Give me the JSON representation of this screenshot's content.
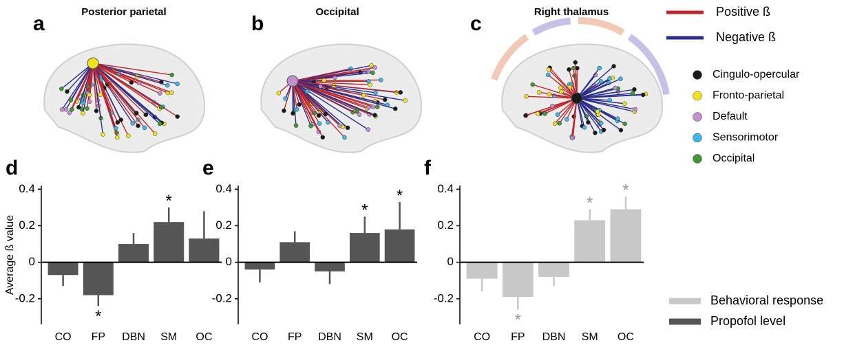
{
  "panels": [
    {
      "letter": "a",
      "title": "Posterior parietal"
    },
    {
      "letter": "b",
      "title": "Occipital"
    },
    {
      "letter": "c",
      "title": "Right thalamus"
    }
  ],
  "edge_legend": [
    {
      "name": "Positive ß",
      "color": "#c0282d"
    },
    {
      "name": "Negative ß",
      "color": "#2b2f8a"
    }
  ],
  "network_legend": [
    {
      "name": "Cingulo-opercular",
      "color": "#1a1a1a"
    },
    {
      "name": "Fronto-parietal",
      "color": "#f2e21b"
    },
    {
      "name": "Default",
      "color": "#c08fd0"
    },
    {
      "name": "Sensorimotor",
      "color": "#3fb6e8"
    },
    {
      "name": "Occipital",
      "color": "#3d9a32"
    }
  ],
  "bar_legend": [
    {
      "name": "Behavioral response",
      "color": "#c8c8c8"
    },
    {
      "name": "Propofol level",
      "color": "#555555"
    }
  ],
  "chart_data": [
    {
      "type": "bar",
      "letter": "d",
      "y_label": "Average ß value",
      "categories": [
        "CO",
        "FP",
        "DBN",
        "SM",
        "OC"
      ],
      "values": [
        -0.07,
        -0.18,
        0.1,
        0.22,
        0.13
      ],
      "errors": [
        0.06,
        0.06,
        0.06,
        0.08,
        0.15
      ],
      "significance": [
        null,
        "*",
        null,
        "*",
        null
      ],
      "color": "#555555",
      "star_color": "#000000",
      "ylim": [
        -0.34,
        0.42
      ],
      "yticks": [
        -0.2,
        0,
        0.2,
        0.4
      ]
    },
    {
      "type": "bar",
      "letter": "e",
      "categories": [
        "CO",
        "FP",
        "DBN",
        "SM",
        "OC"
      ],
      "values": [
        -0.04,
        0.11,
        -0.05,
        0.16,
        0.18
      ],
      "errors": [
        0.07,
        0.06,
        0.07,
        0.09,
        0.15
      ],
      "significance": [
        null,
        null,
        null,
        "*",
        "*"
      ],
      "color": "#555555",
      "star_color": "#000000",
      "ylim": [
        -0.34,
        0.42
      ],
      "yticks": [
        -0.2,
        0,
        0.2,
        0.4
      ]
    },
    {
      "type": "bar",
      "letter": "f",
      "categories": [
        "CO",
        "FP",
        "DBN",
        "SM",
        "OC"
      ],
      "values": [
        -0.09,
        -0.19,
        -0.08,
        0.23,
        0.29
      ],
      "errors": [
        0.07,
        0.07,
        0.05,
        0.06,
        0.07
      ],
      "significance": [
        null,
        "*",
        null,
        "*",
        "*"
      ],
      "color": "#c8c8c8",
      "star_color": "#999999",
      "ylim": [
        -0.34,
        0.42
      ],
      "yticks": [
        -0.2,
        0,
        0.2,
        0.4
      ]
    }
  ]
}
